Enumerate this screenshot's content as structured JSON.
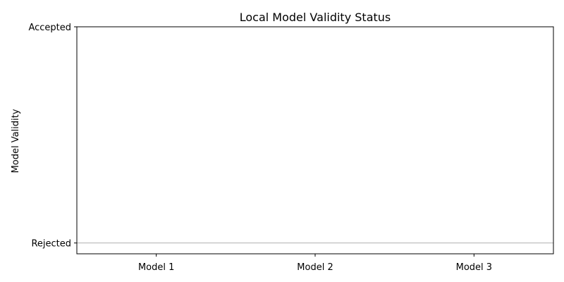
{
  "chart_data": {
    "type": "bar",
    "title": "Local Model Validity Status",
    "xlabel": "",
    "ylabel": "Model Validity",
    "categories": [
      "Model 1",
      "Model 2",
      "Model 3"
    ],
    "values": [
      0,
      0,
      0
    ],
    "y_ticks": [
      {
        "value": 0,
        "label": "Rejected"
      },
      {
        "value": 1,
        "label": "Accepted"
      }
    ],
    "ylim": [
      -0.05,
      1
    ],
    "grid": false,
    "legend": "none",
    "colors": {
      "axis": "#000000",
      "baseline": "#b0b0b0",
      "bar": "#1f77b4"
    }
  }
}
